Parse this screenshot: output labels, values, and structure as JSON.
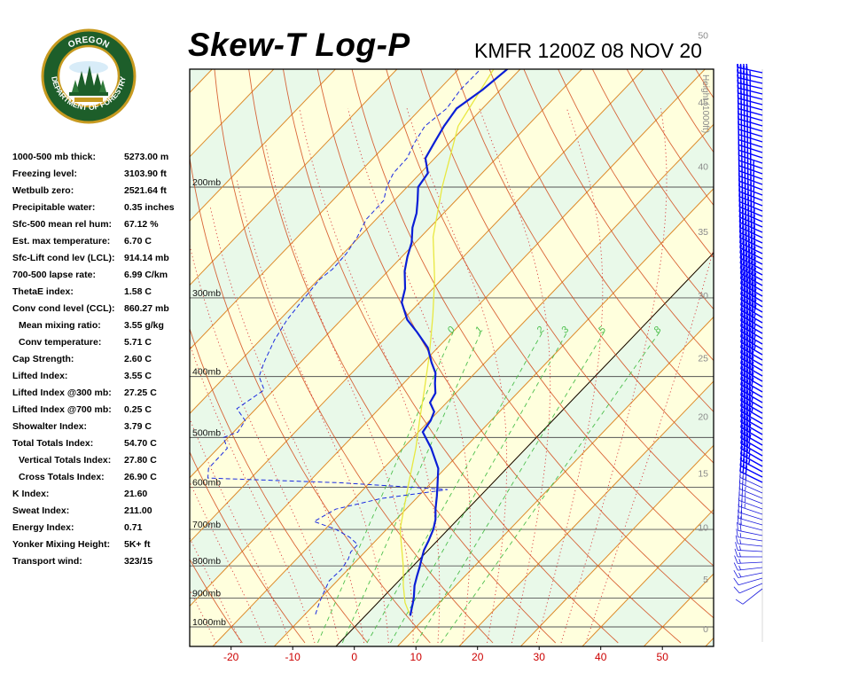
{
  "title": "Skew-T Log-P",
  "station_line": "KMFR 1200Z 08 NOV 20",
  "logo": {
    "text_top": "OREGON",
    "text_bottom": "DEPARTMENT OF FORESTRY"
  },
  "indices": [
    {
      "label": "1000-500 mb thick:",
      "value": "5273.00 m",
      "indent": false
    },
    {
      "label": "Freezing level:",
      "value": "3103.90 ft",
      "indent": false
    },
    {
      "label": "Wetbulb zero:",
      "value": "2521.64 ft",
      "indent": false
    },
    {
      "label": "Precipitable water:",
      "value": "0.35 inches",
      "indent": false
    },
    {
      "label": "Sfc-500 mean rel hum:",
      "value": "67.12 %",
      "indent": false
    },
    {
      "label": "Est. max temperature:",
      "value": "6.70 C",
      "indent": false
    },
    {
      "label": "Sfc-Lift cond lev (LCL):",
      "value": "914.14 mb",
      "indent": false
    },
    {
      "label": "700-500 lapse rate:",
      "value": "6.99 C/km",
      "indent": false
    },
    {
      "label": "ThetaE index:",
      "value": "1.58 C",
      "indent": false
    },
    {
      "label": "Conv cond level (CCL):",
      "value": "860.27 mb",
      "indent": false
    },
    {
      "label": "Mean mixing ratio:",
      "value": "3.55 g/kg",
      "indent": true
    },
    {
      "label": "Conv temperature:",
      "value": "5.71 C",
      "indent": true
    },
    {
      "label": "Cap Strength:",
      "value": "2.60 C",
      "indent": false
    },
    {
      "label": "Lifted Index:",
      "value": "3.55 C",
      "indent": false
    },
    {
      "label": "Lifted Index @300 mb:",
      "value": "27.25 C",
      "indent": false
    },
    {
      "label": "Lifted Index @700 mb:",
      "value": "0.25 C",
      "indent": false
    },
    {
      "label": "Showalter Index:",
      "value": "3.79 C",
      "indent": false
    },
    {
      "label": "Total Totals Index:",
      "value": "54.70 C",
      "indent": false
    },
    {
      "label": "Vertical Totals Index:",
      "value": "27.80 C",
      "indent": true
    },
    {
      "label": "Cross Totals Index:",
      "value": "26.90 C",
      "indent": true
    },
    {
      "label": "K Index:",
      "value": "21.60",
      "indent": false
    },
    {
      "label": "Sweat Index:",
      "value": "211.00",
      "indent": false
    },
    {
      "label": "Energy Index:",
      "value": "0.71",
      "indent": false
    },
    {
      "label": "Yonker Mixing Height:",
      "value": "5K+ ft",
      "indent": false
    },
    {
      "label": "Transport wind:",
      "value": "323/15",
      "indent": false
    }
  ],
  "colors": {
    "background_warm": "#ffffdd",
    "background_cool": "#e9f9e9",
    "isotherm": "#dd8a2a",
    "dry_adiabat": "#d24a1a",
    "moist_adiabat": "#d83a3a",
    "mixing_ratio": "#4cbf4c",
    "temperature": "#0a1ed6",
    "dewpoint": "#1a2ae0",
    "parcel": "#e8e840",
    "x_tick": "#cc0000",
    "height_tick": "#8a8a8a",
    "wind_barb": "#0000ff"
  },
  "chart_data": {
    "type": "line",
    "title": "Skew-T Log-P",
    "subtitle": "KMFR 1200Z 08 NOV 20",
    "x_ticks": [
      "-20",
      "-10",
      "0",
      "10",
      "20",
      "30",
      "40",
      "50"
    ],
    "x_tick_values": [
      -20,
      -10,
      0,
      10,
      20,
      30,
      40,
      50
    ],
    "pressure_labels": [
      "200mb",
      "300mb",
      "400mb",
      "500mb",
      "600mb",
      "700mb",
      "800mb",
      "900mb",
      "1000mb"
    ],
    "pressure_levels": [
      200,
      300,
      400,
      500,
      600,
      700,
      800,
      900,
      1000
    ],
    "height_axis_label": "Height (1000ft)",
    "height_ticks": [
      "0",
      "5",
      "10",
      "15",
      "20",
      "25",
      "30",
      "35",
      "40",
      "45",
      "50"
    ],
    "height_pressure_mb": [
      1010,
      842,
      696,
      571,
      464,
      375,
      298,
      236,
      186,
      147,
      115
    ],
    "mixing_ratio_labels": [
      "0",
      "1",
      "2",
      "3",
      "5",
      "8"
    ],
    "mixing_ratio_temperature_c": [
      16,
      20.5,
      30.5,
      34.5,
      40.5,
      49.5
    ],
    "series": [
      {
        "name": "Temperature",
        "pressure_mb": [
          960,
          935,
          915,
          895,
          860,
          830,
          805,
          780,
          755,
          730,
          700,
          675,
          650,
          620,
          600,
          560,
          520,
          490,
          470,
          455,
          440,
          425,
          410,
          395,
          380,
          360,
          340,
          325,
          305,
          290,
          272,
          258,
          245,
          232,
          220,
          210,
          200,
          190,
          180,
          170,
          160,
          150,
          140,
          130,
          120,
          110
        ],
        "temperature_c": [
          7.3,
          6.4,
          5.7,
          4.9,
          3.3,
          2.2,
          1.3,
          0.3,
          -0.7,
          -1.4,
          -2.4,
          -3.6,
          -5.2,
          -7,
          -8.3,
          -11.1,
          -15.4,
          -19.3,
          -19.8,
          -20.6,
          -22.7,
          -23.3,
          -24.9,
          -26.4,
          -28.7,
          -31.6,
          -35.8,
          -39.3,
          -42.9,
          -44.5,
          -47.3,
          -49.1,
          -50.6,
          -52.8,
          -54.4,
          -56.2,
          -58.2,
          -58.8,
          -61.5,
          -62.5,
          -63.5,
          -64.2,
          -62.9,
          -62.1,
          -61.3,
          -60.6
        ]
      },
      {
        "name": "Dewpoint",
        "pressure_mb": [
          955,
          915,
          880,
          845,
          810,
          780,
          760,
          740,
          720,
          700,
          680,
          650,
          625,
          605,
          600,
          590,
          580,
          560,
          520,
          500,
          490,
          470,
          450,
          420,
          400,
          380,
          350,
          325,
          300,
          280,
          270,
          255,
          240,
          225,
          210,
          200,
          190,
          180,
          170,
          160,
          150,
          140,
          125,
          110
        ],
        "temperature_c": [
          -8.3,
          -9.5,
          -10.4,
          -11.3,
          -11.1,
          -11.6,
          -12.3,
          -12.3,
          -14.8,
          -18.2,
          -23,
          -21.4,
          -15.7,
          -6.3,
          -12.2,
          -24.9,
          -47,
          -48.4,
          -48.5,
          -50.8,
          -49.3,
          -49.9,
          -53.1,
          -51.6,
          -54.5,
          -55.9,
          -57.7,
          -58.8,
          -59.4,
          -59.8,
          -59.3,
          -59.5,
          -60.3,
          -61.6,
          -61.7,
          -63.3,
          -64.4,
          -64.5,
          -65.7,
          -66.6,
          -65.8,
          -66.5,
          -66.4,
          -66.6
        ]
      },
      {
        "name": "Parcel",
        "pressure_mb": [
          960,
          915,
          860,
          800,
          700,
          600,
          520,
          470,
          420,
          370,
          320,
          280,
          240,
          200,
          160,
          120,
          110
        ],
        "temperature_c": [
          7.3,
          4.4,
          1.5,
          -1.6,
          -7.8,
          -13.1,
          -17.9,
          -21.6,
          -25.6,
          -30.2,
          -35.8,
          -41.2,
          -48,
          -54.3,
          -61.2,
          -65.5,
          -65.9
        ]
      }
    ],
    "wind": [
      {
        "pressure_mb": 985,
        "direction_deg": 80,
        "speed_kt": 5
      },
      {
        "pressure_mb": 950,
        "direction_deg": 135,
        "speed_kt": 5
      },
      {
        "pressure_mb": 900,
        "direction_deg": 205,
        "speed_kt": 5
      },
      {
        "pressure_mb": 850,
        "direction_deg": 250,
        "speed_kt": 10
      },
      {
        "pressure_mb": 800,
        "direction_deg": 265,
        "speed_kt": 15
      },
      {
        "pressure_mb": 750,
        "direction_deg": 275,
        "speed_kt": 15
      },
      {
        "pressure_mb": 700,
        "direction_deg": 285,
        "speed_kt": 20
      },
      {
        "pressure_mb": 650,
        "direction_deg": 290,
        "speed_kt": 25
      },
      {
        "pressure_mb": 600,
        "direction_deg": 295,
        "speed_kt": 30
      },
      {
        "pressure_mb": 550,
        "direction_deg": 300,
        "speed_kt": 35
      },
      {
        "pressure_mb": 500,
        "direction_deg": 300,
        "speed_kt": 40
      },
      {
        "pressure_mb": 450,
        "direction_deg": 300,
        "speed_kt": 45
      },
      {
        "pressure_mb": 400,
        "direction_deg": 300,
        "speed_kt": 50
      },
      {
        "pressure_mb": 350,
        "direction_deg": 300,
        "speed_kt": 55
      },
      {
        "pressure_mb": 300,
        "direction_deg": 300,
        "speed_kt": 60
      },
      {
        "pressure_mb": 250,
        "direction_deg": 295,
        "speed_kt": 60
      },
      {
        "pressure_mb": 200,
        "direction_deg": 290,
        "speed_kt": 55
      },
      {
        "pressure_mb": 150,
        "direction_deg": 285,
        "speed_kt": 45
      },
      {
        "pressure_mb": 120,
        "direction_deg": 280,
        "speed_kt": 40
      }
    ],
    "xlim": [
      -28,
      57
    ],
    "ylim_mb": [
      1050,
      100
    ],
    "y_scale": "log",
    "grid": true,
    "legend": "none"
  }
}
